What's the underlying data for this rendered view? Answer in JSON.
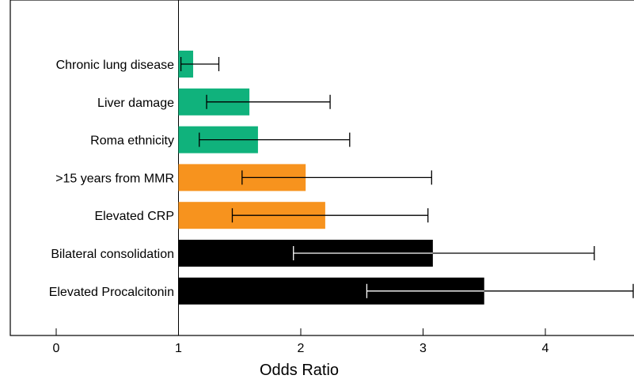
{
  "chart_data": {
    "type": "bar",
    "orientation": "horizontal",
    "title": "",
    "xlabel": "Odds Ratio",
    "ylabel": "",
    "xlim": [
      -0.4,
      4.75
    ],
    "baseline": 1,
    "xticks": [
      0,
      1,
      2,
      3,
      4
    ],
    "grid": false,
    "legend": "none",
    "categories": [
      "Chronic lung disease",
      "Liver damage",
      "Roma ethnicity",
      ">15 years from MMR",
      "Elevated CRP",
      "Bilateral consolidation",
      "Elevated Procalcitonin"
    ],
    "values": [
      1.12,
      1.58,
      1.65,
      2.04,
      2.2,
      3.08,
      3.5
    ],
    "ci_lower": [
      1.02,
      1.23,
      1.17,
      1.52,
      1.44,
      1.94,
      2.54
    ],
    "ci_upper": [
      1.33,
      2.24,
      2.4,
      3.07,
      3.04,
      4.4,
      4.75
    ],
    "colors": [
      "#10b27c",
      "#10b27c",
      "#10b27c",
      "#f7931e",
      "#f7931e",
      "#000000",
      "#000000"
    ]
  }
}
